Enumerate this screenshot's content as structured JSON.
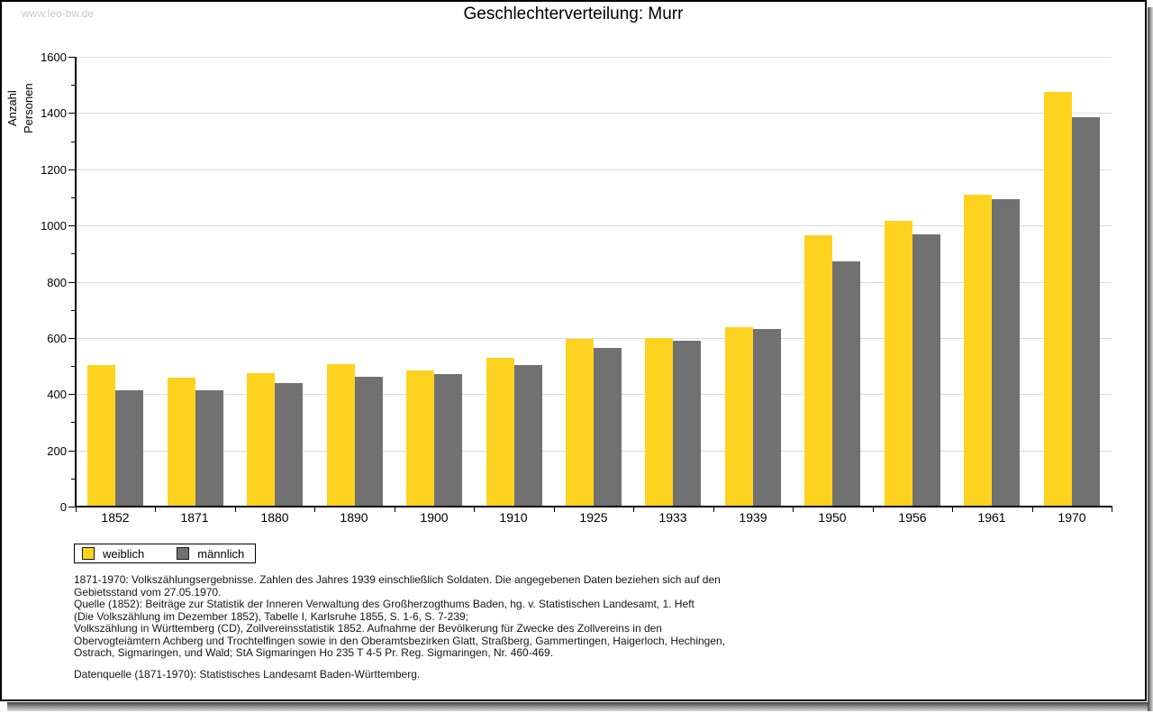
{
  "watermark": "www.leo-bw.de",
  "title": "Geschlechterverteilung: Murr",
  "chart_data": {
    "type": "bar",
    "title": "Geschlechterverteilung: Murr",
    "xlabel": "",
    "ylabel": "Anzahl Personen",
    "ylim": [
      0,
      1600
    ],
    "ytick_major": 200,
    "ytick_minor": 100,
    "grid": "horizontal-major",
    "legend_position": "bottom-left",
    "categories": [
      "1852",
      "1871",
      "1880",
      "1890",
      "1900",
      "1910",
      "1925",
      "1933",
      "1939",
      "1950",
      "1956",
      "1961",
      "1970"
    ],
    "series": [
      {
        "name": "weiblich",
        "color": "#fdd320",
        "values": [
          503,
          458,
          474,
          508,
          483,
          528,
          595,
          599,
          637,
          965,
          1017,
          1110,
          1475
        ]
      },
      {
        "name": "männlich",
        "color": "#717171",
        "values": [
          414,
          414,
          440,
          461,
          470,
          503,
          563,
          591,
          633,
          871,
          969,
          1093,
          1386
        ]
      }
    ]
  },
  "legend": {
    "items": [
      {
        "label": "weiblich",
        "color": "#fdd320"
      },
      {
        "label": "männlich",
        "color": "#717171"
      }
    ]
  },
  "footnotes": [
    "1871-1970: Volkszählungsergebnisse. Zahlen des Jahres 1939 einschließlich Soldaten. Die angegebenen Daten beziehen sich auf den",
    "Gebietsstand vom 27.05.1970.",
    "Quelle (1852): Beiträge zur Statistik der Inneren Verwaltung des Großherzogthums Baden, hg. v. Statistischen Landesamt, 1. Heft",
    "(Die Volkszählung im Dezember 1852), Tabelle I, Karlsruhe 1855, S. 1-6, S. 7-239;",
    "Volkszählung in Württemberg (CD), Zollvereinsstatistik 1852. Aufnahme der Bevölkerung für Zwecke des Zollvereins in den",
    "Obervogteiämtern Achberg und Trochtelfingen sowie in den Oberamtsbezirken Glatt, Straßberg, Gammertingen, Haigerloch, Hechingen,",
    "Ostrach, Sigmaringen, und Wald; StA Sigmaringen Ho 235 T 4-5 Pr. Reg. Sigmaringen, Nr. 460-469."
  ],
  "datasource": "Datenquelle (1871-1970): Statistisches Landesamt Baden-Württemberg.",
  "colors": {
    "weiblich": "#fdd320",
    "maennlich": "#717171",
    "gridline": "#dcdcdc",
    "axis": "#000000",
    "watermark": "#c9c9c9",
    "frame_border": "#000000"
  }
}
